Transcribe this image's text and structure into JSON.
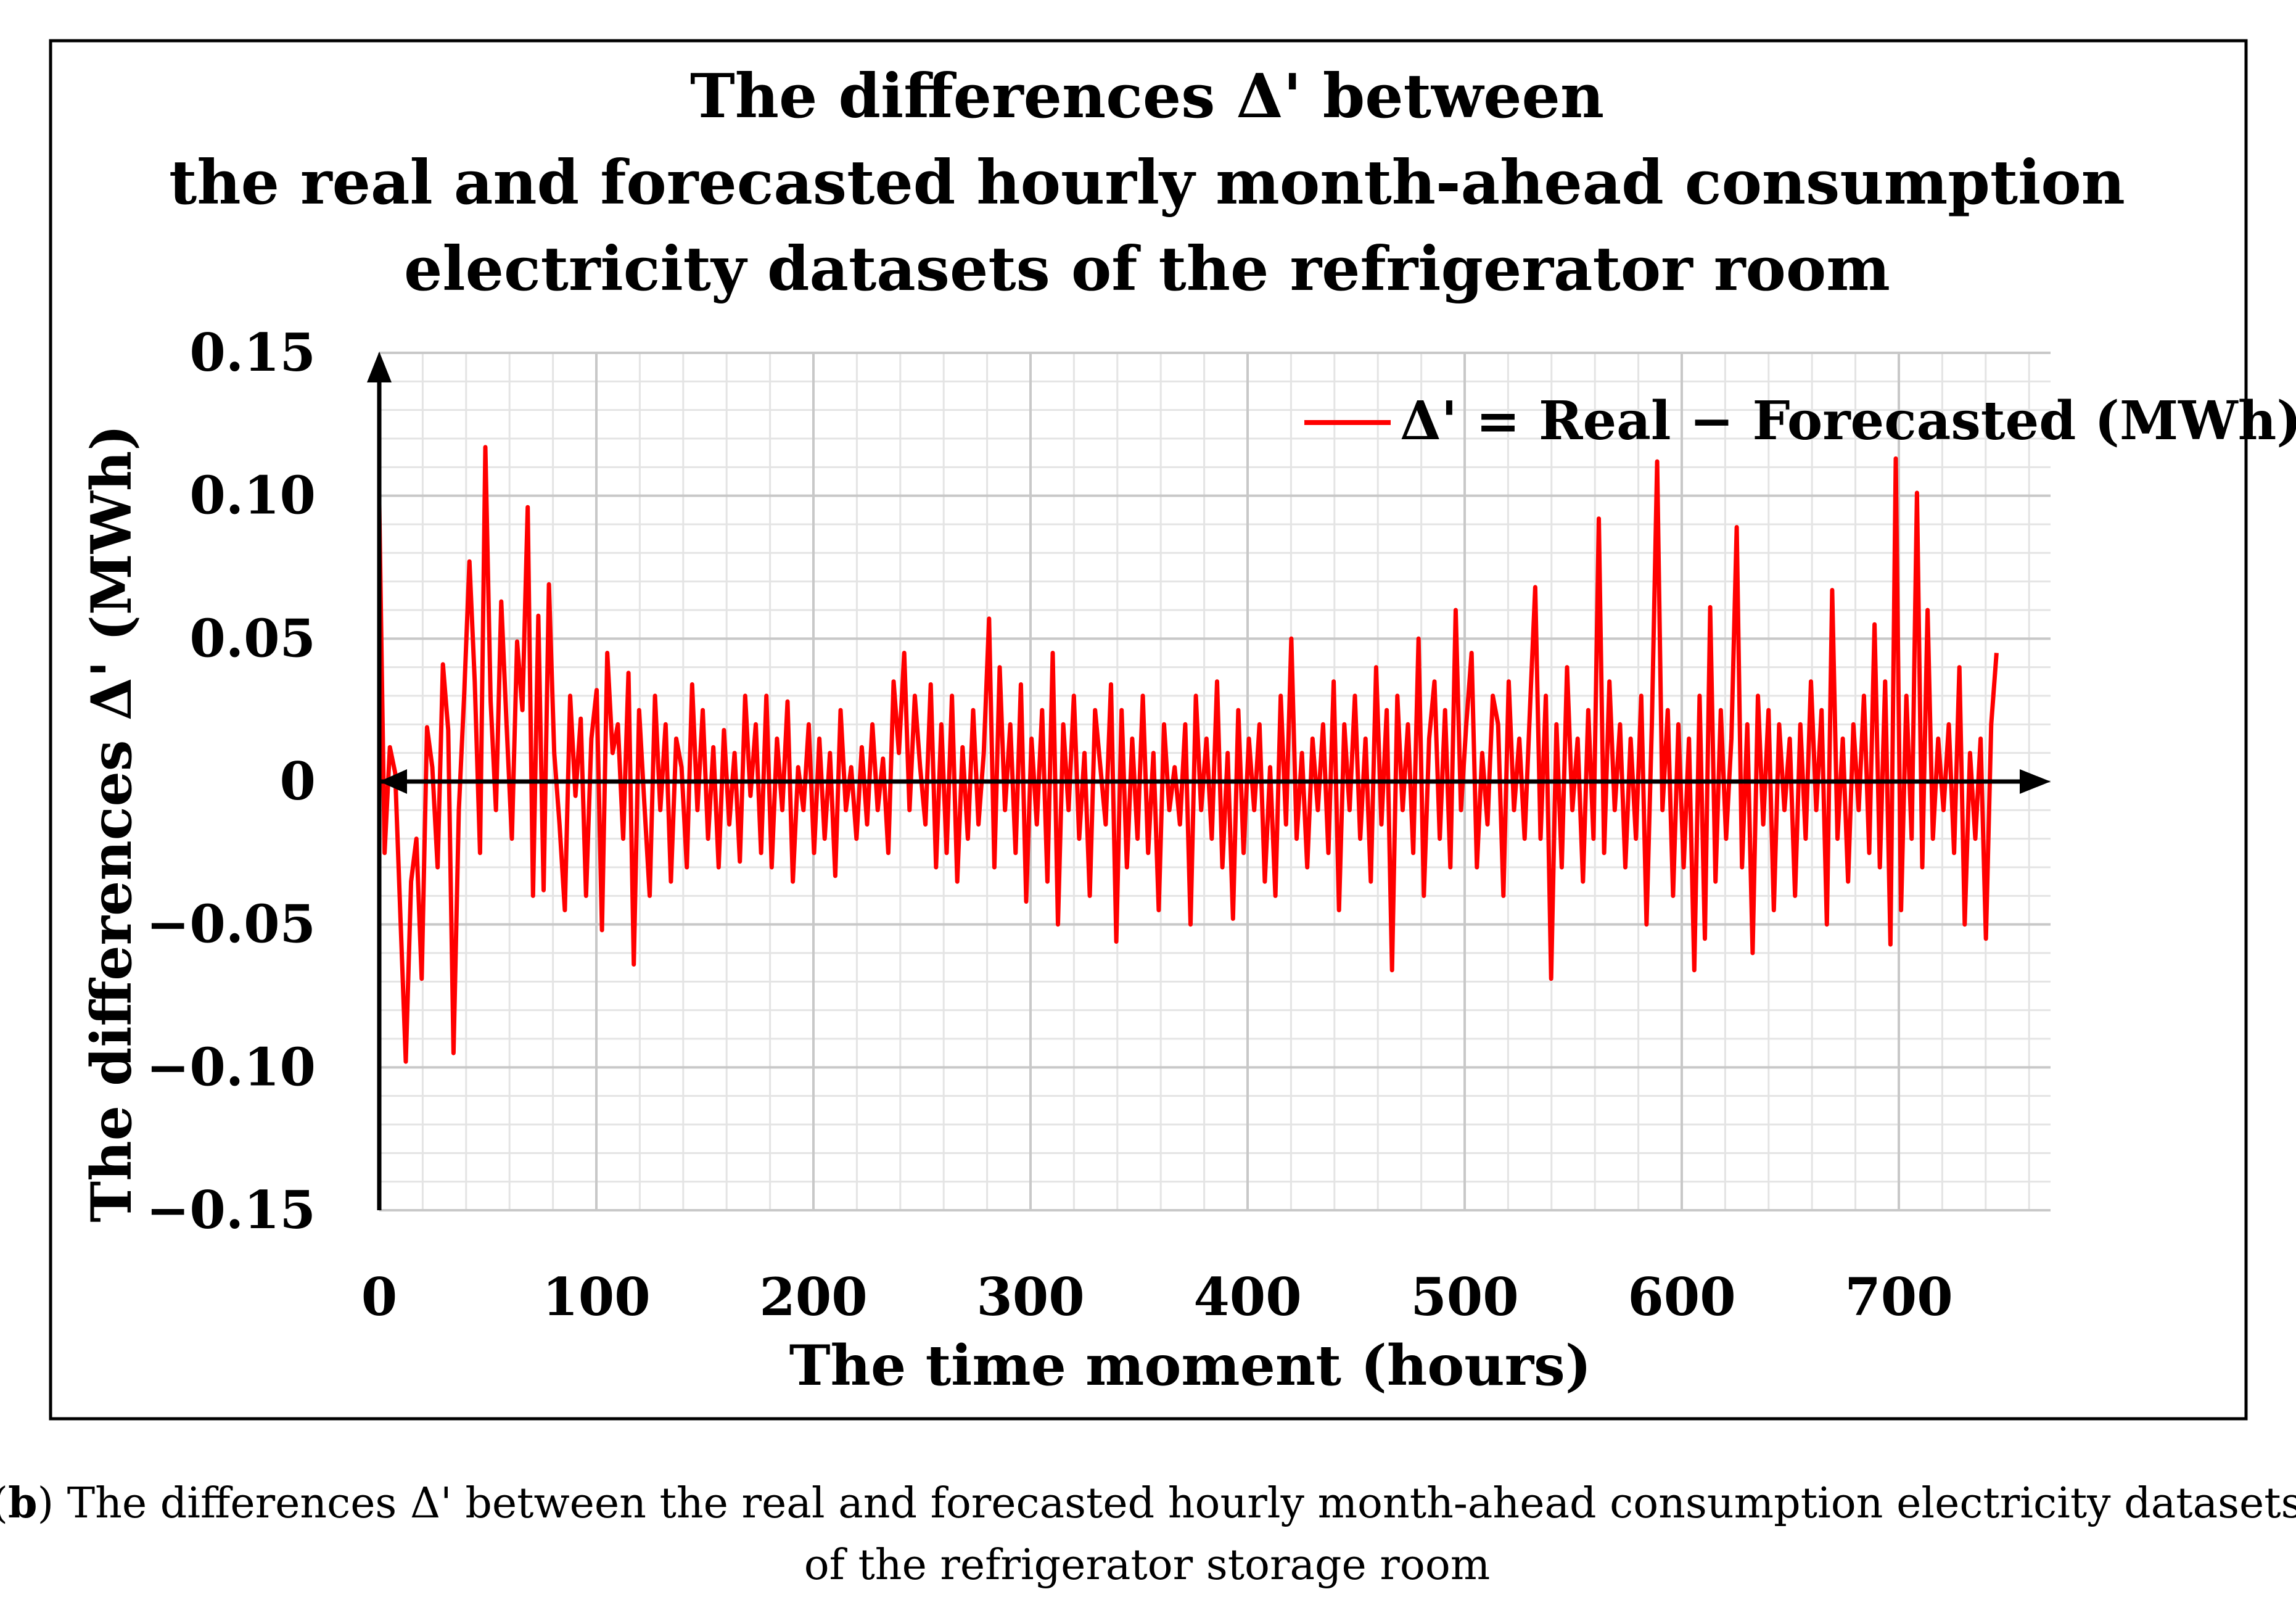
{
  "chart_data": {
    "type": "line",
    "title_lines": [
      "The differences Δ' between",
      "the real and forecasted hourly month-ahead consumption",
      "electricity datasets of the refrigerator room"
    ],
    "xlabel": "The time moment (hours)",
    "ylabel": "The differences Δ' (MWh)",
    "xlim": [
      0,
      770
    ],
    "ylim": [
      -0.15,
      0.15
    ],
    "x_ticks": [
      0,
      100,
      200,
      300,
      400,
      500,
      600,
      700
    ],
    "x_tick_labels": [
      "0",
      "100",
      "200",
      "300",
      "400",
      "500",
      "600",
      "700"
    ],
    "y_ticks": [
      0.15,
      0.1,
      0.05,
      0,
      -0.05,
      -0.1,
      -0.15
    ],
    "y_tick_labels": [
      "0.15",
      "0.10",
      "0.05",
      "0",
      "−0.05",
      "−0.10",
      "−0.15"
    ],
    "grid": true,
    "legend_position": "top-right",
    "color": "#ff0000",
    "series": [
      {
        "name": "Δ'  = Real − Forecasted (MWh)",
        "x_start": 0,
        "x_step": 1,
        "values": [
          0.097,
          -0.025,
          0.012,
          0.003,
          -0.048,
          -0.098,
          -0.035,
          -0.02,
          -0.069,
          0.019,
          0.005,
          -0.03,
          0.041,
          0.018,
          -0.095,
          -0.01,
          0.03,
          0.077,
          0.035,
          -0.025,
          0.117,
          0.028,
          -0.01,
          0.063,
          0.02,
          -0.02,
          0.049,
          0.025,
          0.096,
          -0.04,
          0.058,
          -0.038,
          0.069,
          0.01,
          -0.015,
          -0.045,
          0.03,
          -0.005,
          0.022,
          -0.04,
          0.015,
          0.032,
          -0.052,
          0.045,
          0.01,
          0.02,
          -0.02,
          0.038,
          -0.064,
          0.025,
          -0.008,
          -0.04,
          0.03,
          -0.01,
          0.02,
          -0.035,
          0.015,
          0.005,
          -0.03,
          0.034,
          -0.01,
          0.025,
          -0.02,
          0.012,
          -0.03,
          0.018,
          -0.015,
          0.01,
          -0.028,
          0.03,
          -0.005,
          0.02,
          -0.025,
          0.03,
          -0.03,
          0.015,
          -0.01,
          0.028,
          -0.035,
          0.005,
          -0.01,
          0.02,
          -0.025,
          0.015,
          -0.02,
          0.01,
          -0.033,
          0.025,
          -0.01,
          0.005,
          -0.02,
          0.012,
          -0.015,
          0.02,
          -0.01,
          0.008,
          -0.025,
          0.035,
          0.01,
          0.045,
          -0.01,
          0.03,
          0.005,
          -0.015,
          0.034,
          -0.03,
          0.02,
          -0.025,
          0.03,
          -0.035,
          0.012,
          -0.02,
          0.025,
          -0.015,
          0.01,
          0.057,
          -0.03,
          0.04,
          -0.01,
          0.02,
          -0.025,
          0.034,
          -0.042,
          0.015,
          -0.015,
          0.025,
          -0.035,
          0.045,
          -0.05,
          0.02,
          -0.01,
          0.03,
          -0.02,
          0.01,
          -0.04,
          0.025,
          0.005,
          -0.015,
          0.034,
          -0.056,
          0.025,
          -0.03,
          0.015,
          -0.02,
          0.03,
          -0.025,
          0.01,
          -0.045,
          0.02,
          -0.01,
          0.005,
          -0.015,
          0.02,
          -0.05,
          0.03,
          -0.01,
          0.015,
          -0.02,
          0.035,
          -0.03,
          0.01,
          -0.048,
          0.025,
          -0.025,
          0.015,
          -0.01,
          0.02,
          -0.035,
          0.005,
          -0.04,
          0.03,
          -0.015,
          0.05,
          -0.02,
          0.01,
          -0.03,
          0.015,
          -0.01,
          0.02,
          -0.025,
          0.035,
          -0.045,
          0.02,
          -0.01,
          0.03,
          -0.02,
          0.015,
          -0.035,
          0.04,
          -0.015,
          0.025,
          -0.066,
          0.03,
          -0.01,
          0.02,
          -0.025,
          0.05,
          -0.04,
          0.015,
          0.035,
          -0.02,
          0.025,
          -0.03,
          0.06,
          -0.01,
          0.02,
          0.045,
          -0.03,
          0.01,
          -0.015,
          0.03,
          0.02,
          -0.04,
          0.035,
          -0.01,
          0.015,
          -0.02,
          0.025,
          0.068,
          -0.02,
          0.03,
          -0.069,
          0.02,
          -0.03,
          0.04,
          -0.01,
          0.015,
          -0.035,
          0.025,
          -0.02,
          0.092,
          -0.025,
          0.035,
          -0.01,
          0.02,
          -0.03,
          0.015,
          -0.02,
          0.03,
          -0.05,
          0.02,
          0.112,
          -0.01,
          0.025,
          -0.04,
          0.02,
          -0.03,
          0.015,
          -0.066,
          0.03,
          -0.055,
          0.061,
          -0.035,
          0.025,
          -0.02,
          0.015,
          0.089,
          -0.03,
          0.02,
          -0.06,
          0.03,
          -0.015,
          0.025,
          -0.045,
          0.02,
          -0.01,
          0.015,
          -0.04,
          0.02,
          -0.02,
          0.035,
          -0.01,
          0.025,
          -0.05,
          0.067,
          -0.02,
          0.015,
          -0.035,
          0.02,
          -0.01,
          0.03,
          -0.025,
          0.055,
          -0.03,
          0.035,
          -0.057,
          0.113,
          -0.045,
          0.03,
          -0.02,
          0.101,
          -0.03,
          0.06,
          -0.02,
          0.015,
          -0.01,
          0.02,
          -0.025,
          0.04,
          -0.05,
          0.01,
          -0.02,
          0.015,
          -0.055,
          0.02,
          0.045
        ]
      }
    ]
  },
  "caption": {
    "panel_label": "b",
    "line1_rest": " The differences Δ' between the real and forecasted hourly month-ahead consumption electricity datasets",
    "line2": "of the refrigerator storage room"
  }
}
